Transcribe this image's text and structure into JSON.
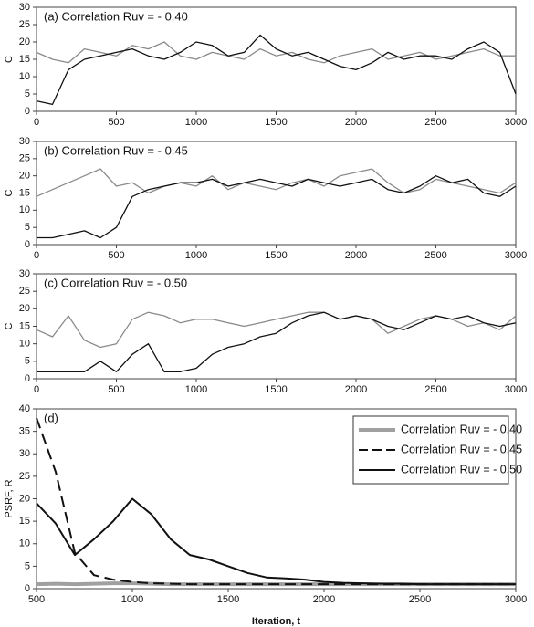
{
  "chart_data": [
    {
      "type": "line",
      "title": "(a) Correlation Ruv = - 0.40",
      "ylabel": "C",
      "x": [
        0,
        100,
        200,
        300,
        400,
        500,
        600,
        700,
        800,
        900,
        1000,
        1100,
        1200,
        1300,
        1400,
        1500,
        1600,
        1700,
        1800,
        1900,
        2000,
        2100,
        2200,
        2300,
        2400,
        2500,
        2600,
        2700,
        2800,
        2900,
        3000
      ],
      "series": [
        {
          "color": "#8a8a8a",
          "values": [
            17,
            15,
            14,
            18,
            17,
            16,
            19,
            18,
            20,
            16,
            15,
            17,
            16,
            15,
            18,
            16,
            17,
            15,
            14,
            16,
            17,
            18,
            15,
            16,
            17,
            15,
            16,
            17,
            18,
            16,
            16
          ]
        },
        {
          "color": "#111111",
          "values": [
            3,
            2,
            12,
            15,
            16,
            17,
            18,
            16,
            15,
            17,
            20,
            19,
            16,
            17,
            22,
            18,
            16,
            17,
            15,
            13,
            12,
            14,
            17,
            15,
            16,
            16,
            15,
            18,
            20,
            17,
            5
          ]
        }
      ],
      "xlim": [
        0,
        3000
      ],
      "xticks": [
        0,
        500,
        1000,
        1500,
        2000,
        2500,
        3000
      ],
      "ylim": [
        0,
        30
      ],
      "yticks": [
        0,
        5,
        10,
        15,
        20,
        25,
        30
      ]
    },
    {
      "type": "line",
      "title": "(b) Correlation Ruv = - 0.45",
      "ylabel": "C",
      "x": [
        0,
        100,
        200,
        300,
        400,
        500,
        600,
        700,
        800,
        900,
        1000,
        1100,
        1200,
        1300,
        1400,
        1500,
        1600,
        1700,
        1800,
        1900,
        2000,
        2100,
        2200,
        2300,
        2400,
        2500,
        2600,
        2700,
        2800,
        2900,
        3000
      ],
      "series": [
        {
          "color": "#8a8a8a",
          "values": [
            14,
            16,
            18,
            20,
            22,
            17,
            18,
            15,
            17,
            18,
            17,
            20,
            16,
            18,
            17,
            16,
            18,
            19,
            17,
            20,
            21,
            22,
            18,
            15,
            16,
            19,
            18,
            17,
            16,
            15,
            18
          ]
        },
        {
          "color": "#111111",
          "values": [
            2,
            2,
            3,
            4,
            2,
            5,
            14,
            16,
            17,
            18,
            18,
            19,
            17,
            18,
            19,
            18,
            17,
            19,
            18,
            17,
            18,
            19,
            16,
            15,
            17,
            20,
            18,
            19,
            15,
            14,
            17
          ]
        }
      ],
      "xlim": [
        0,
        3000
      ],
      "xticks": [
        0,
        500,
        1000,
        1500,
        2000,
        2500,
        3000
      ],
      "ylim": [
        0,
        30
      ],
      "yticks": [
        0,
        5,
        10,
        15,
        20,
        25,
        30
      ]
    },
    {
      "type": "line",
      "title": "(c) Correlation Ruv = - 0.50",
      "ylabel": "C",
      "x": [
        0,
        100,
        200,
        300,
        400,
        500,
        600,
        700,
        800,
        900,
        1000,
        1100,
        1200,
        1300,
        1400,
        1500,
        1600,
        1700,
        1800,
        1900,
        2000,
        2100,
        2200,
        2300,
        2400,
        2500,
        2600,
        2700,
        2800,
        2900,
        3000
      ],
      "series": [
        {
          "color": "#8a8a8a",
          "values": [
            14,
            12,
            18,
            11,
            9,
            10,
            17,
            19,
            18,
            16,
            17,
            17,
            16,
            15,
            16,
            17,
            18,
            19,
            19,
            17,
            18,
            17,
            13,
            15,
            17,
            18,
            17,
            15,
            16,
            14,
            18
          ]
        },
        {
          "color": "#111111",
          "values": [
            2,
            2,
            2,
            2,
            5,
            2,
            7,
            10,
            2,
            2,
            3,
            7,
            9,
            10,
            12,
            13,
            16,
            18,
            19,
            17,
            18,
            17,
            15,
            14,
            16,
            18,
            17,
            18,
            16,
            15,
            16
          ]
        }
      ],
      "xlim": [
        0,
        3000
      ],
      "xticks": [
        0,
        500,
        1000,
        1500,
        2000,
        2500,
        3000
      ],
      "ylim": [
        0,
        30
      ],
      "yticks": [
        0,
        5,
        10,
        15,
        20,
        25,
        30
      ]
    },
    {
      "type": "line",
      "title": "(d)",
      "ylabel": "PSRF, R",
      "xlabel": "Iteration, t",
      "x": [
        500,
        600,
        700,
        800,
        900,
        1000,
        1100,
        1200,
        1300,
        1400,
        1500,
        1600,
        1700,
        1800,
        1900,
        2000,
        2100,
        2200,
        2300,
        2400,
        2500,
        2600,
        2700,
        2800,
        2900,
        3000
      ],
      "series": [
        {
          "name": "Correlation Ruv = - 0.40",
          "color": "#a0a0a0",
          "line_width": 4,
          "dash": "solid",
          "values": [
            1,
            1.1,
            1,
            1.1,
            1.2,
            1.2,
            1.1,
            1,
            1,
            1,
            1,
            1,
            1,
            1,
            1,
            1,
            1,
            1,
            1,
            1,
            1,
            1,
            1,
            1,
            1,
            1
          ]
        },
        {
          "name": "Correlation Ruv = - 0.45",
          "color": "#111111",
          "line_width": 2,
          "dash": "dashed",
          "values": [
            38,
            26,
            8,
            3,
            2,
            1.5,
            1.2,
            1.1,
            1,
            1,
            1,
            1,
            1,
            1,
            1,
            1,
            1,
            1,
            1,
            1,
            1,
            1,
            1,
            1,
            1,
            1
          ]
        },
        {
          "name": "Correlation Ruv = - 0.50",
          "color": "#111111",
          "line_width": 2,
          "dash": "solid",
          "values": [
            19,
            14.5,
            7.5,
            11,
            15,
            20,
            16.5,
            11,
            7.5,
            6.5,
            5,
            3.5,
            2.5,
            2.3,
            2,
            1.5,
            1.3,
            1.2,
            1.1,
            1.1,
            1,
            1,
            1,
            1,
            1,
            1
          ]
        }
      ],
      "legend": "upper right",
      "xlim": [
        500,
        3000
      ],
      "xticks": [
        500,
        1000,
        1500,
        2000,
        2500,
        3000
      ],
      "ylim": [
        0,
        40
      ],
      "yticks": [
        0,
        5,
        10,
        15,
        20,
        25,
        30,
        35,
        40
      ]
    }
  ]
}
